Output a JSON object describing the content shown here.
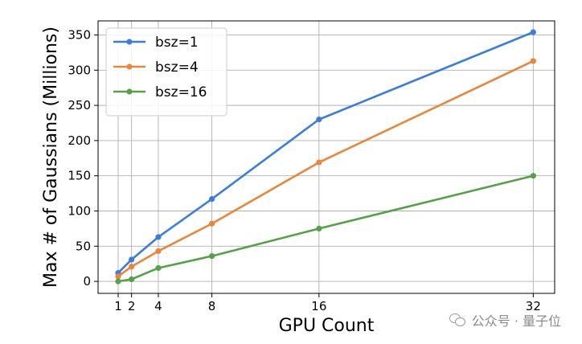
{
  "chart_data": {
    "type": "line",
    "title": "",
    "xlabel": "GPU Count",
    "ylabel": "Max # of Gaussians (Millions)",
    "x": [
      1,
      2,
      4,
      8,
      16,
      32
    ],
    "xticks": [
      1,
      2,
      4,
      8,
      16,
      32
    ],
    "yticks": [
      0,
      50,
      100,
      150,
      200,
      250,
      300,
      350
    ],
    "xlim": [
      -0.5,
      33.6
    ],
    "ylim": [
      -17,
      370
    ],
    "grid": true,
    "legend_position": "top-left",
    "series": [
      {
        "name": "bsz=1",
        "color": "#3b7ddd",
        "values": [
          12,
          31,
          63,
          117,
          230,
          354
        ]
      },
      {
        "name": "bsz=4",
        "color": "#e8873a",
        "values": [
          7,
          21,
          43,
          82,
          169,
          313
        ]
      },
      {
        "name": "bsz=16",
        "color": "#55a147",
        "values": [
          0,
          3,
          19,
          36,
          75,
          150
        ]
      }
    ]
  },
  "watermark": {
    "text": "公众号 · 量子位",
    "icon": "wechat-icon"
  }
}
